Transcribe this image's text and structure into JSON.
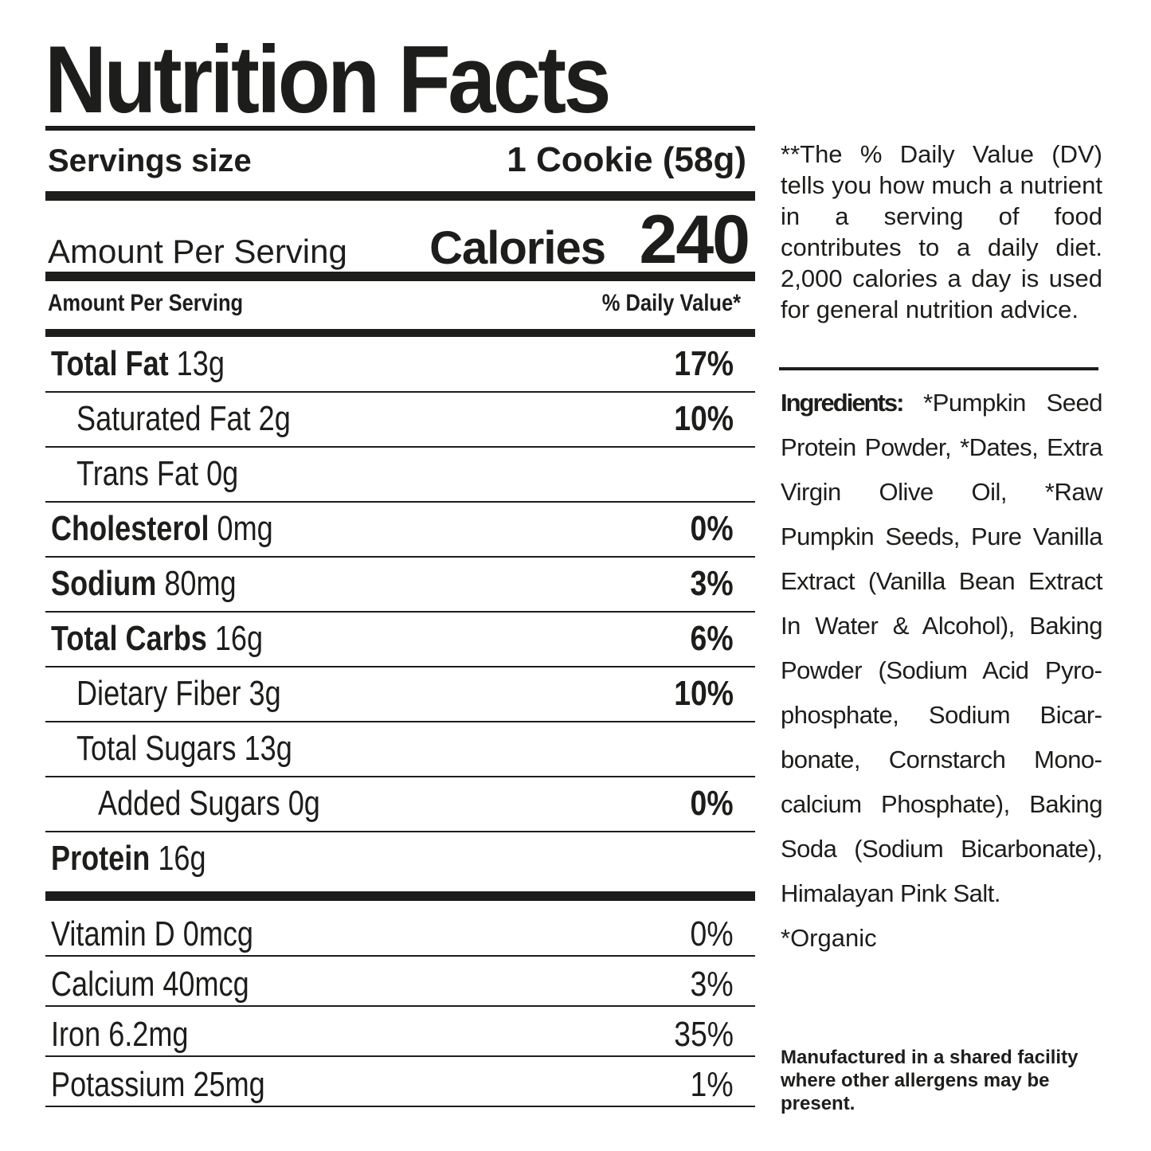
{
  "title": "Nutrition Facts",
  "serving": {
    "label": "Servings size",
    "value": "1 Cookie (58g)"
  },
  "calories": {
    "amount_label": "Amount Per Serving",
    "label": "Calories",
    "value": "240"
  },
  "header": {
    "left": "Amount Per Serving",
    "right": "% Daily Value*"
  },
  "nutrients": [
    {
      "name": "Total Fat",
      "amount": "13g",
      "pct": "17%"
    },
    {
      "name": "Saturated Fat",
      "amount": "2g",
      "pct": "10%"
    },
    {
      "name": "Trans Fat",
      "amount": "0g",
      "pct": ""
    },
    {
      "name": "Cholesterol",
      "amount": "0mg",
      "pct": "0%"
    },
    {
      "name": "Sodium",
      "amount": "80mg",
      "pct": "3%"
    },
    {
      "name": "Total Carbs",
      "amount": "16g",
      "pct": "6%"
    },
    {
      "name": "Dietary Fiber",
      "amount": "3g",
      "pct": "10%"
    },
    {
      "name": "Total Sugars",
      "amount": "13g",
      "pct": ""
    },
    {
      "name": "Added Sugars",
      "amount": "0g",
      "pct": "0%"
    },
    {
      "name": "Protein",
      "amount": "16g",
      "pct": ""
    }
  ],
  "vitamins": [
    {
      "name": "Vitamin D 0mcg",
      "pct": "0%"
    },
    {
      "name": "Calcium 40mcg",
      "pct": "3%"
    },
    {
      "name": "Iron 6.2mg",
      "pct": "35%"
    },
    {
      "name": "Potassium 25mg",
      "pct": "1%"
    }
  ],
  "dv_note": "**The % Daily Value (DV) tells you how much a nu­trient in a serving of food contributes to a daily diet. 2,000 calories a day is used for general nutrition advice.",
  "ingredients": {
    "label": "Ingredients:",
    "text": " *Pumpkin Seed Protein Powder, *Dates, Extra Virgin Olive Oil, *Raw Pumpkin Seeds, Pure Vanilla Extract (Vanilla Bean Extract In Water & Alcohol), Baking Powder (Sodium Acid Pyro­phosphate, Sodium Bicar­bonate, Cornstarch Mono­calcium Phosphate), Baking Soda (Sodium Bicarbonate), Himalayan Pink Salt."
  },
  "organic_note": "*Organic",
  "facility_note": "Manufactured in a shared facility where other allergens may be present."
}
